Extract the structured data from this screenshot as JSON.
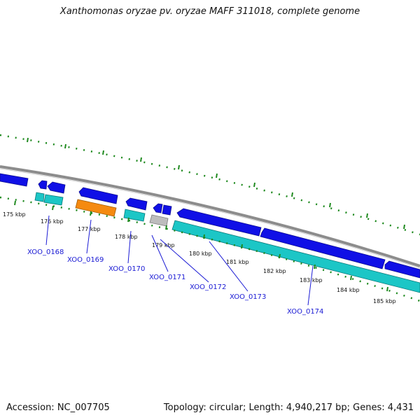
{
  "title": "Xanthomonas oryzae pv. oryzae MAFF 311018, complete genome",
  "footer": {
    "accession": "Accession: NC_007705",
    "summary": "Topology: circular; Length: 4,940,217 bp; Genes: 4,431"
  },
  "map": {
    "kbp_labels": [
      "175 kbp",
      "176 kbp",
      "177 kbp",
      "178 kbp",
      "179 kbp",
      "180 kbp",
      "181 kbp",
      "182 kbp",
      "183 kbp",
      "184 kbp",
      "185 kbp"
    ],
    "loci": [
      "XOO_0168",
      "XOO_0169",
      "XOO_0170",
      "XOO_0171",
      "XOO_0172",
      "XOO_0173",
      "XOO_0174"
    ],
    "colors": {
      "backbone": "#8c8c8c",
      "ticks": "#1f8a1f",
      "cds_forward": "#1010e6",
      "gene": "#1cc6c6",
      "rna": "#f58a10",
      "pseudo": "#bdbdbd",
      "label": "#1a1ad4"
    }
  }
}
